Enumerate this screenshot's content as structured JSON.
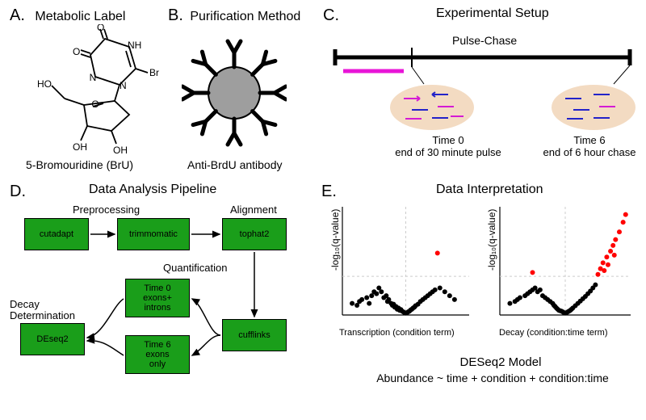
{
  "panelA": {
    "letter": "A.",
    "title": "Metabolic Label",
    "caption": "5-Bromouridine (BrU)",
    "atoms": {
      "HO": "HO",
      "O1": "O",
      "O2": "O",
      "N": "N",
      "NH": "NH",
      "Br": "Br",
      "OH1": "OH",
      "OH2": "OH"
    }
  },
  "panelB": {
    "letter": "B.",
    "title": "Purification Method",
    "caption": "Anti-BrdU antibody",
    "bead_fill": "#9e9e9e",
    "stroke": "#000000"
  },
  "panelC": {
    "letter": "C.",
    "title": "Experimental Setup",
    "axis_label": "Pulse-Chase",
    "pulse_color": "#e815d7",
    "cell_fill": "#f3dbc2",
    "rna_labeled": "#d41bd4",
    "rna_unlabeled": "#2323c9",
    "time0_line1": "Time 0",
    "time0_line2": "end of 30 minute pulse",
    "time6_line1": "Time 6",
    "time6_line2": "end of 6 hour chase"
  },
  "panelD": {
    "letter": "D.",
    "title": "Data Analysis Pipeline",
    "headers": {
      "preproc": "Preprocessing",
      "align": "Alignment",
      "quant": "Quantification",
      "decay": "Decay\nDetermination"
    },
    "boxes": {
      "cutadapt": "cutadapt",
      "trimmomatic": "trimmomatic",
      "tophat2": "tophat2",
      "cufflinks": "cufflinks",
      "t0": "Time 0\nexons+\nintrons",
      "t6": "Time 6\nexons\nonly",
      "deseq2": "DEseq2"
    },
    "box_color": "#1a9e1a"
  },
  "panelE": {
    "letter": "E.",
    "title": "Data Interpretation",
    "ylabel": "-log₁₀(q-value)",
    "xlabel_left": "Transcription (condition term)",
    "xlabel_right": "Decay (condition:time term)",
    "model_title": "DESeq2 Model",
    "model_formula": "Abundance ~ time + condition + condition:time",
    "colors": {
      "point_black": "#000000",
      "point_red": "#ff0000",
      "grid": "#cccccc"
    },
    "left_plot": {
      "black": [
        [
          -2.2,
          0.3
        ],
        [
          -2.0,
          0.25
        ],
        [
          -1.9,
          0.35
        ],
        [
          -1.8,
          0.4
        ],
        [
          -1.6,
          0.45
        ],
        [
          -1.5,
          0.3
        ],
        [
          -1.4,
          0.5
        ],
        [
          -1.3,
          0.6
        ],
        [
          -1.2,
          0.55
        ],
        [
          -1.1,
          0.7
        ],
        [
          -1.0,
          0.6
        ],
        [
          -0.9,
          0.45
        ],
        [
          -0.8,
          0.5
        ],
        [
          -0.75,
          0.35
        ],
        [
          -0.7,
          0.4
        ],
        [
          -0.6,
          0.3
        ],
        [
          -0.55,
          0.25
        ],
        [
          -0.5,
          0.28
        ],
        [
          -0.45,
          0.2
        ],
        [
          -0.4,
          0.22
        ],
        [
          -0.35,
          0.15
        ],
        [
          -0.3,
          0.18
        ],
        [
          -0.25,
          0.12
        ],
        [
          -0.2,
          0.14
        ],
        [
          -0.15,
          0.1
        ],
        [
          -0.1,
          0.08
        ],
        [
          -0.05,
          0.06
        ],
        [
          0,
          0.05
        ],
        [
          0.05,
          0.06
        ],
        [
          0.1,
          0.08
        ],
        [
          0.15,
          0.1
        ],
        [
          0.2,
          0.13
        ],
        [
          0.25,
          0.15
        ],
        [
          0.3,
          0.18
        ],
        [
          0.35,
          0.2
        ],
        [
          0.4,
          0.24
        ],
        [
          0.5,
          0.28
        ],
        [
          0.6,
          0.35
        ],
        [
          0.7,
          0.4
        ],
        [
          0.8,
          0.45
        ],
        [
          0.9,
          0.5
        ],
        [
          1.0,
          0.55
        ],
        [
          1.1,
          0.6
        ],
        [
          1.2,
          0.65
        ],
        [
          1.4,
          0.7
        ],
        [
          1.6,
          0.6
        ],
        [
          1.8,
          0.5
        ],
        [
          2.0,
          0.4
        ]
      ],
      "red": [
        [
          1.3,
          1.6
        ]
      ]
    },
    "right_plot": {
      "black": [
        [
          -2.2,
          0.3
        ],
        [
          -2.0,
          0.35
        ],
        [
          -1.9,
          0.4
        ],
        [
          -1.8,
          0.45
        ],
        [
          -1.6,
          0.5
        ],
        [
          -1.5,
          0.55
        ],
        [
          -1.4,
          0.6
        ],
        [
          -1.3,
          0.65
        ],
        [
          -1.2,
          0.7
        ],
        [
          -1.1,
          0.6
        ],
        [
          -1.0,
          0.65
        ],
        [
          -0.9,
          0.5
        ],
        [
          -0.8,
          0.45
        ],
        [
          -0.7,
          0.4
        ],
        [
          -0.6,
          0.35
        ],
        [
          -0.5,
          0.3
        ],
        [
          -0.45,
          0.25
        ],
        [
          -0.4,
          0.22
        ],
        [
          -0.35,
          0.18
        ],
        [
          -0.3,
          0.15
        ],
        [
          -0.25,
          0.12
        ],
        [
          -0.2,
          0.11
        ],
        [
          -0.15,
          0.1
        ],
        [
          -0.1,
          0.08
        ],
        [
          -0.05,
          0.06
        ],
        [
          0,
          0.05
        ],
        [
          0.05,
          0.06
        ],
        [
          0.1,
          0.08
        ],
        [
          0.15,
          0.1
        ],
        [
          0.2,
          0.12
        ],
        [
          0.25,
          0.15
        ],
        [
          0.3,
          0.18
        ],
        [
          0.4,
          0.24
        ],
        [
          0.5,
          0.3
        ],
        [
          0.6,
          0.36
        ],
        [
          0.7,
          0.42
        ],
        [
          0.8,
          0.48
        ],
        [
          0.9,
          0.55
        ],
        [
          1.0,
          0.62
        ],
        [
          1.1,
          0.7
        ],
        [
          1.2,
          0.78
        ]
      ],
      "red": [
        [
          -1.3,
          1.1
        ],
        [
          1.3,
          1.05
        ],
        [
          1.4,
          1.2
        ],
        [
          1.5,
          1.35
        ],
        [
          1.55,
          1.15
        ],
        [
          1.65,
          1.5
        ],
        [
          1.7,
          1.3
        ],
        [
          1.8,
          1.65
        ],
        [
          1.9,
          1.8
        ],
        [
          1.95,
          1.55
        ],
        [
          2.0,
          1.95
        ],
        [
          2.15,
          2.15
        ],
        [
          2.3,
          2.4
        ],
        [
          2.4,
          2.6
        ]
      ]
    }
  }
}
